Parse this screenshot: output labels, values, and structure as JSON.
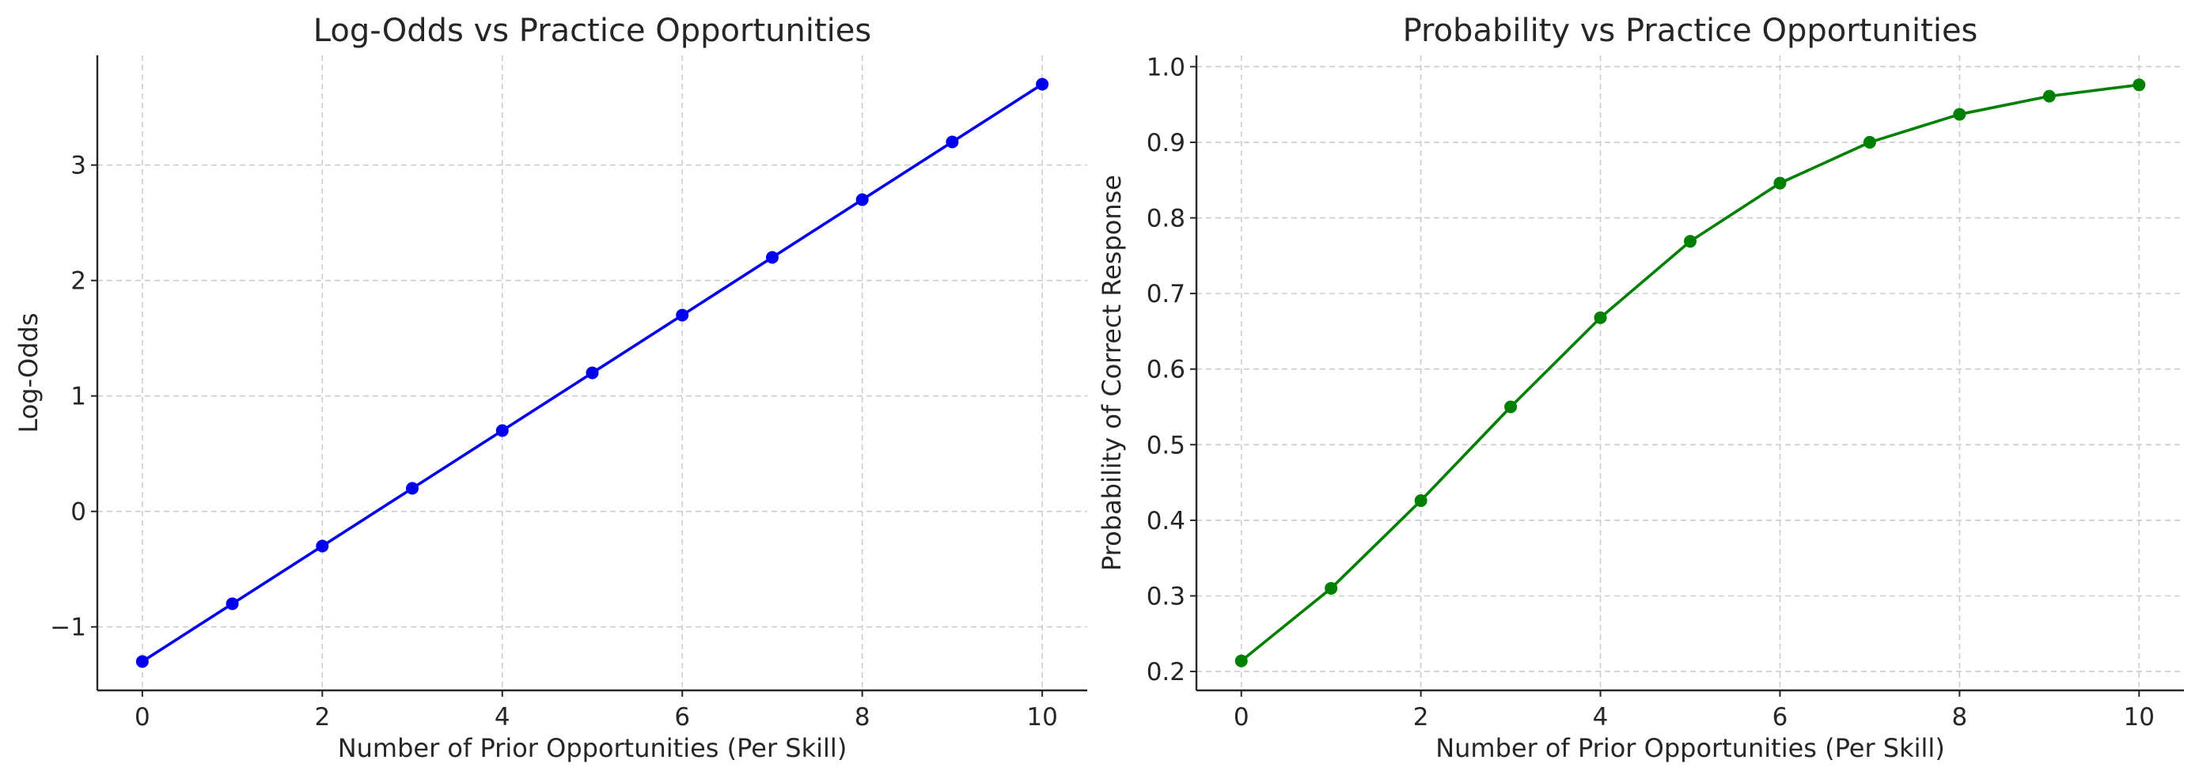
{
  "chart_data": [
    {
      "type": "line",
      "title": "Log-Odds vs Practice Opportunities",
      "xlabel": "Number of Prior Opportunities (Per Skill)",
      "ylabel": "Log-Odds",
      "xlim": [
        -0.5,
        10.5
      ],
      "ylim": [
        -1.55,
        3.95
      ],
      "xticks": [
        0,
        2,
        4,
        6,
        8,
        10
      ],
      "yticks": [
        -1,
        0,
        1,
        2,
        3
      ],
      "ytick_labels": [
        "−1",
        "0",
        "1",
        "2",
        "3"
      ],
      "grid": true,
      "x": [
        0,
        1,
        2,
        3,
        4,
        5,
        6,
        7,
        8,
        9,
        10
      ],
      "series": [
        {
          "color": "#0000ee",
          "marker": "circle",
          "values": [
            -1.3,
            -0.8,
            -0.3,
            0.2,
            0.7,
            1.2,
            1.7,
            2.2,
            2.7,
            3.2,
            3.7
          ]
        }
      ]
    },
    {
      "type": "line",
      "title": "Probability vs Practice Opportunities",
      "xlabel": "Number of Prior Opportunities (Per Skill)",
      "ylabel": "Probability of Correct Response",
      "xlim": [
        -0.5,
        10.5
      ],
      "ylim": [
        0.175,
        1.015
      ],
      "xticks": [
        0,
        2,
        4,
        6,
        8,
        10
      ],
      "yticks": [
        0.2,
        0.3,
        0.4,
        0.5,
        0.6,
        0.7,
        0.8,
        0.9,
        1.0
      ],
      "ytick_labels": [
        "0.2",
        "0.3",
        "0.4",
        "0.5",
        "0.6",
        "0.7",
        "0.8",
        "0.9",
        "1.0"
      ],
      "grid": true,
      "x": [
        0,
        1,
        2,
        3,
        4,
        5,
        6,
        7,
        8,
        9,
        10
      ],
      "series": [
        {
          "color": "#008000",
          "marker": "circle",
          "values": [
            0.214,
            0.31,
            0.426,
            0.55,
            0.668,
            0.769,
            0.846,
            0.9,
            0.937,
            0.961,
            0.976
          ]
        }
      ]
    }
  ]
}
